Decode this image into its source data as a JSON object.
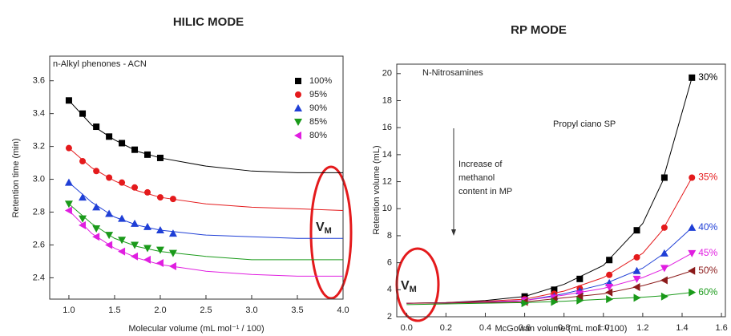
{
  "chart_data": [
    {
      "type": "scatter",
      "title": "HILIC MODE",
      "annotation": "n-Alkyl phenones - ACN",
      "vm": {
        "main": "V",
        "sub": "M"
      },
      "x_label": "Molecular volume (mL mol⁻¹ / 100)",
      "y_label": "Retention time (min)",
      "xlim": [
        0.79,
        4.0
      ],
      "ylim": [
        2.27,
        3.75
      ],
      "xticks": [
        {
          "value": 1,
          "label": "1.0"
        },
        1.5,
        {
          "value": 2,
          "label": "2.0"
        },
        2.5,
        {
          "value": 3,
          "label": "3.0"
        },
        3.5,
        {
          "value": 4,
          "label": "4.0"
        }
      ],
      "yticks": [
        2.4,
        2.6,
        2.8,
        {
          "value": 3,
          "label": "3.0"
        },
        3.2,
        3.4,
        3.6
      ],
      "legend_position": "upper right",
      "fit_x": [
        1.0,
        1.25,
        1.5,
        1.75,
        2.0,
        2.5,
        3.0,
        3.5,
        4.0
      ],
      "series": [
        {
          "name": "100%",
          "color": "#000000",
          "marker": "square",
          "x": [
            1.0,
            1.15,
            1.3,
            1.44,
            1.58,
            1.72,
            1.86,
            2.0
          ],
          "values": [
            3.48,
            3.4,
            3.32,
            3.26,
            3.22,
            3.18,
            3.15,
            3.13
          ],
          "fit": [
            3.48,
            3.33,
            3.24,
            3.17,
            3.13,
            3.08,
            3.05,
            3.04,
            3.04
          ]
        },
        {
          "name": "95%",
          "color": "#e41a1c",
          "marker": "circle",
          "x": [
            1.0,
            1.15,
            1.3,
            1.44,
            1.58,
            1.72,
            1.86,
            2.0,
            2.14
          ],
          "values": [
            3.19,
            3.11,
            3.05,
            3.01,
            2.98,
            2.95,
            2.92,
            2.89,
            2.88
          ],
          "fit": [
            3.19,
            3.07,
            2.99,
            2.93,
            2.89,
            2.85,
            2.83,
            2.82,
            2.81
          ]
        },
        {
          "name": "90%",
          "color": "#1f3fd6",
          "marker": "triangle-up",
          "x": [
            1.0,
            1.15,
            1.3,
            1.44,
            1.58,
            1.72,
            1.86,
            2.0,
            2.14
          ],
          "values": [
            2.98,
            2.89,
            2.83,
            2.79,
            2.76,
            2.73,
            2.71,
            2.69,
            2.67
          ],
          "fit": [
            2.98,
            2.86,
            2.77,
            2.72,
            2.69,
            2.66,
            2.65,
            2.64,
            2.64
          ]
        },
        {
          "name": "85%",
          "color": "#1a9a1a",
          "marker": "triangle-down",
          "x": [
            1.0,
            1.15,
            1.3,
            1.44,
            1.58,
            1.72,
            1.86,
            2.0,
            2.14
          ],
          "values": [
            2.85,
            2.76,
            2.7,
            2.66,
            2.63,
            2.6,
            2.58,
            2.57,
            2.55
          ],
          "fit": [
            2.85,
            2.73,
            2.64,
            2.59,
            2.56,
            2.53,
            2.51,
            2.51,
            2.51
          ]
        },
        {
          "name": "80%",
          "color": "#e01ee0",
          "marker": "triangle-left",
          "x": [
            1.0,
            1.15,
            1.3,
            1.44,
            1.58,
            1.72,
            1.86,
            2.0,
            2.14
          ],
          "values": [
            2.81,
            2.72,
            2.65,
            2.6,
            2.56,
            2.53,
            2.51,
            2.49,
            2.47
          ],
          "fit": [
            2.81,
            2.67,
            2.58,
            2.52,
            2.48,
            2.44,
            2.42,
            2.41,
            2.41
          ]
        }
      ]
    },
    {
      "type": "scatter",
      "title": "RP MODE",
      "annotation": "N-Nitrosamines",
      "phase": "Propyl ciano SP",
      "arrow_text": [
        "Increase of",
        "methanol",
        "content in MP"
      ],
      "vm": {
        "main": "V",
        "sub": "M"
      },
      "x_label": "McGowan volume (mL mol⁻¹/100)",
      "y_label": "Retention volume (mL)",
      "xlim": [
        -0.05,
        1.62
      ],
      "ylim": [
        2,
        20.7
      ],
      "xticks": [
        {
          "value": 0,
          "label": "0.0"
        },
        0.2,
        0.4,
        0.6,
        0.8,
        {
          "value": 1,
          "label": "1.0"
        },
        1.2,
        1.4,
        1.6
      ],
      "yticks": [
        2,
        4,
        6,
        8,
        10,
        12,
        14,
        16,
        18,
        20
      ],
      "legend_position": "line-end",
      "fit_x": [
        0,
        0.2,
        0.4,
        0.6,
        0.8,
        1.0,
        1.2,
        1.3,
        1.45
      ],
      "series": [
        {
          "name": "30%",
          "color": "#000000",
          "marker": "square",
          "x": [
            0.6,
            0.75,
            0.88,
            1.03,
            1.17,
            1.31,
            1.45
          ],
          "values": [
            3.5,
            4.0,
            4.8,
            6.2,
            8.4,
            12.3,
            19.7
          ],
          "fit": [
            3.0,
            3.05,
            3.2,
            3.5,
            4.4,
            5.8,
            8.9,
            12.0,
            19.7
          ]
        },
        {
          "name": "35%",
          "color": "#e41a1c",
          "marker": "circle",
          "x": [
            0.6,
            0.75,
            0.88,
            1.03,
            1.17,
            1.31,
            1.45
          ],
          "values": [
            3.3,
            3.7,
            4.1,
            5.1,
            6.4,
            8.6,
            12.3
          ],
          "fit": [
            3.0,
            3.05,
            3.15,
            3.3,
            3.9,
            4.9,
            6.7,
            8.4,
            12.3
          ]
        },
        {
          "name": "40%",
          "color": "#1f3fd6",
          "marker": "triangle-up",
          "x": [
            0.6,
            0.75,
            0.88,
            1.03,
            1.17,
            1.31,
            1.45
          ],
          "values": [
            3.2,
            3.5,
            3.9,
            4.5,
            5.4,
            6.7,
            8.6
          ],
          "fit": [
            3.0,
            3.03,
            3.1,
            3.2,
            3.7,
            4.4,
            5.6,
            6.6,
            8.6
          ]
        },
        {
          "name": "45%",
          "color": "#e01ee0",
          "marker": "triangle-down",
          "x": [
            0.6,
            0.75,
            0.88,
            1.03,
            1.17,
            1.31,
            1.45
          ],
          "values": [
            3.2,
            3.4,
            3.7,
            4.2,
            4.8,
            5.6,
            6.7
          ],
          "fit": [
            3.0,
            3.02,
            3.08,
            3.2,
            3.6,
            4.1,
            4.9,
            5.5,
            6.7
          ]
        },
        {
          "name": "50%",
          "color": "#8b1a1a",
          "marker": "triangle-left",
          "x": [
            0.6,
            0.75,
            0.88,
            1.03,
            1.17,
            1.31,
            1.45
          ],
          "values": [
            3.1,
            3.3,
            3.5,
            3.8,
            4.2,
            4.7,
            5.4
          ],
          "fit": [
            3.0,
            3.02,
            3.06,
            3.1,
            3.4,
            3.7,
            4.3,
            4.7,
            5.4
          ]
        },
        {
          "name": "60%",
          "color": "#1a9a1a",
          "marker": "triangle-right",
          "x": [
            0.6,
            0.75,
            0.88,
            1.03,
            1.17,
            1.31,
            1.45
          ],
          "values": [
            3.0,
            3.1,
            3.2,
            3.3,
            3.4,
            3.5,
            3.8
          ],
          "fit": [
            2.9,
            2.95,
            3.0,
            3.05,
            3.15,
            3.3,
            3.45,
            3.55,
            3.8
          ]
        }
      ]
    }
  ]
}
